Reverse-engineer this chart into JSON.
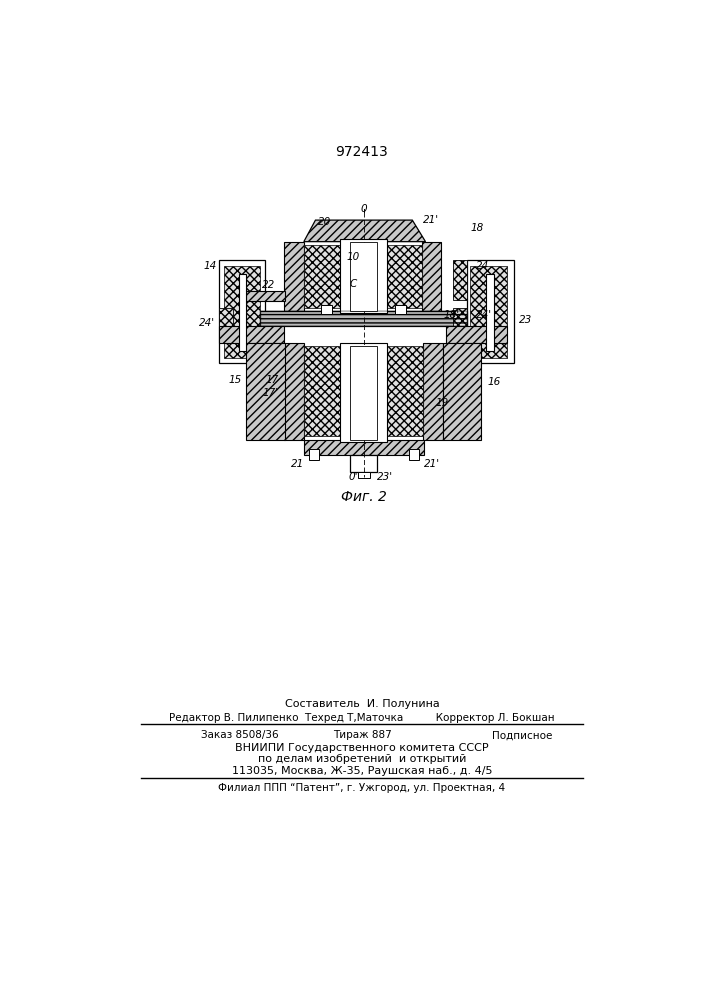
{
  "patent_number": "972413",
  "fig_caption": "Фиг. 2",
  "bg_color": "#ffffff",
  "page_width": 7.07,
  "page_height": 10.0,
  "footer": {
    "line1": "Составитель  И. Полунина",
    "line2": "Редактор В. Пилипенко  Техред Т,Маточка          Корректор Л. Бокшан",
    "line3_left": "Заказ 8508/36",
    "line3_mid": "Тираж 887",
    "line3_right": "Подписное",
    "line4": "ВНИИПИ Государственного комитета СССР",
    "line5": "по делам изобретений  и открытий",
    "line6": "113035, Москва, Ж-35, Раушская наб., д. 4/5",
    "line7": "Филиал ППП “Патент”, г. Ужгород, ул. Проектная, 4"
  }
}
